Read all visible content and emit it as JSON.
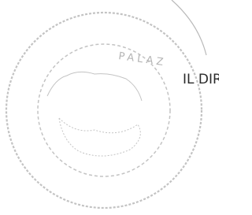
{
  "stamp": {
    "text": "PALAZ"
  },
  "signature_block": {
    "title": "IL DIR"
  }
}
